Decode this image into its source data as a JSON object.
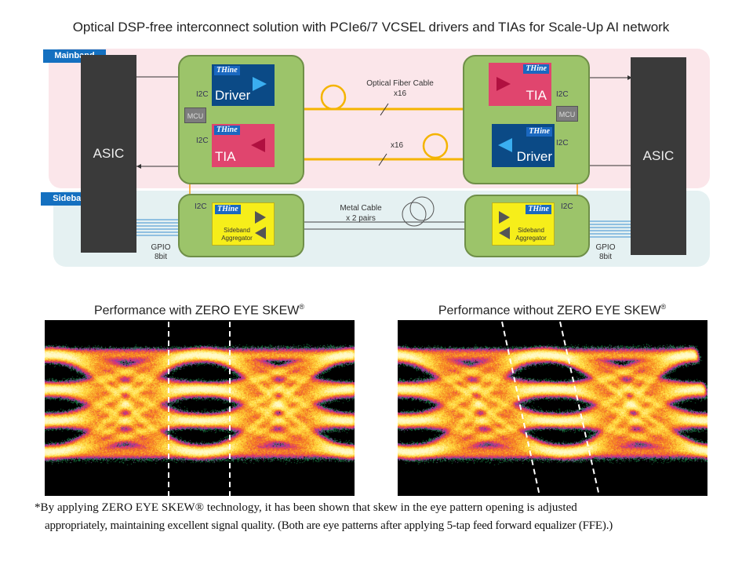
{
  "title": "Optical DSP-free interconnect solution with PCIe6/7 VCSEL drivers and TIAs for Scale-Up AI network",
  "diagram": {
    "mainband": "Mainband",
    "sideband": "Sideband",
    "asic_left": "ASIC",
    "asic_right": "ASIC",
    "brand": "THine",
    "driver": "Driver",
    "tia": "TIA",
    "mcu": "MCU",
    "i2c": "I2C",
    "aggregator": "Sideband Aggregator",
    "fiber_label": "Optical Fiber Cable",
    "fiber_count_top": "x16",
    "fiber_count_bottom": "x16",
    "metal_label": "Metal Cable",
    "metal_count": "x 2 pairs",
    "gpio": "GPIO",
    "gpio_bits": "8bit",
    "colors": {
      "mainband_bg": "#fbe6ea",
      "sideband_bg": "#e5f1f2",
      "module": "#9cc46a",
      "driver": "#0b4a86",
      "tia": "#e0456e",
      "fiber": "#f4b400",
      "aggregator": "#f6ee1a"
    }
  },
  "eyes": [
    {
      "title": "Performance with ZERO EYE SKEW",
      "mark": "®",
      "skewed": false
    },
    {
      "title": "Performance without ZERO EYE SKEW",
      "mark": "®",
      "skewed": true
    }
  ],
  "footnote": {
    "line1": "*By applying ZERO EYE SKEW® technology, it has been shown that skew in the eye pattern opening is adjusted",
    "line2": "appropriately, maintaining excellent signal quality. (Both are eye patterns after applying 5-tap feed forward equalizer (FFE).)"
  }
}
